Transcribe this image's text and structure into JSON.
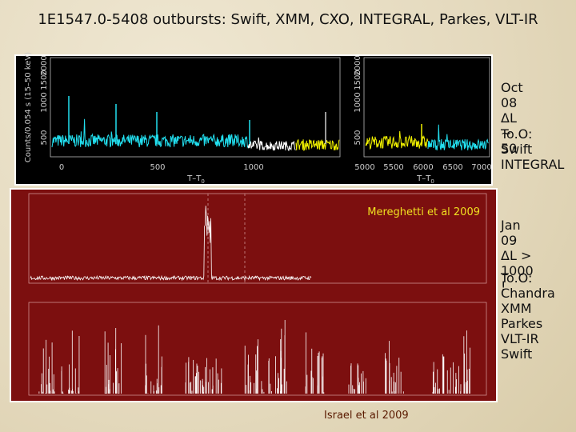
{
  "title": "1E1547.0-5408 outbursts: Swift, XMM, CXO, INTEGRAL, Parkes, VLT-IR",
  "top_panel": {
    "left_plot": {
      "y_label": "Counts/0.054 s (15–50 keV)",
      "y_ticks": [
        "500",
        "1000",
        "1500",
        "2000"
      ],
      "x_ticks": [
        "0",
        "500",
        "1000"
      ],
      "x_label": "T–T",
      "x_label_sub": "0"
    },
    "right_plot": {
      "y_ticks": [
        "500",
        "1000",
        "1500",
        "2000"
      ],
      "x_ticks": [
        "5000",
        "5500",
        "6000",
        "6500",
        "7000"
      ],
      "x_label": "T–T",
      "x_label_sub": "0"
    }
  },
  "red_panel": {
    "credit": "Mereghetti et al 2009"
  },
  "bottom_credit": "Israel et al 2009",
  "notes": [
    {
      "lines": [
        "Oct 08",
        "ΔL ~ 50"
      ]
    },
    {
      "lines": [
        "To.O:",
        "Swift",
        "INTEGRAL"
      ]
    },
    {
      "lines": [
        "Jan 09",
        "ΔL > 1000 !"
      ]
    },
    {
      "lines": [
        "To.O:",
        "Chandra",
        "XMM",
        "Parkes",
        "VLT-IR",
        "Swift"
      ]
    }
  ]
}
